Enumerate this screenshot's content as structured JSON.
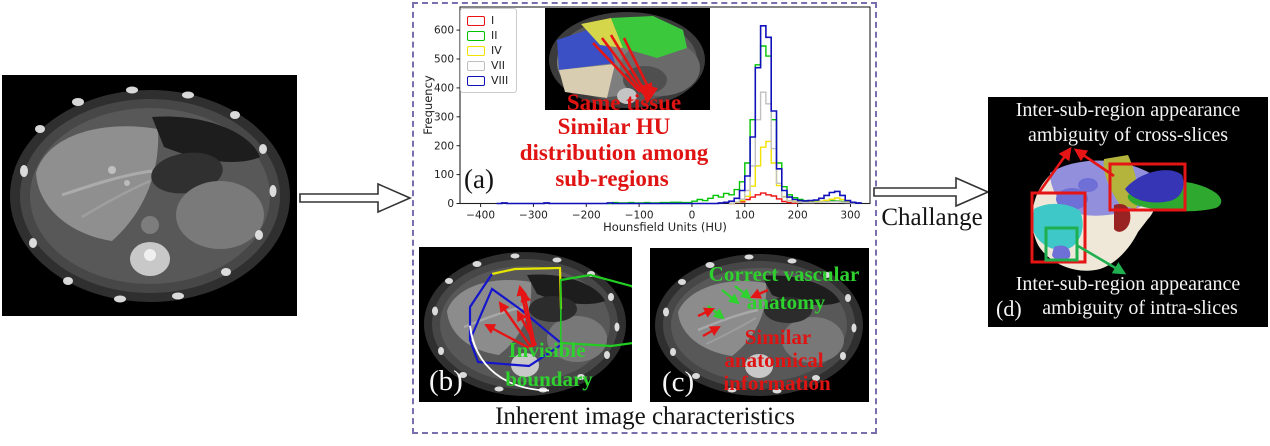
{
  "figure": {
    "challenge_label": "Challange",
    "box_caption": "Inherent image characteristics",
    "dashed_border_color": "#7a6fae",
    "arrow_red": "#e51515",
    "arrow_green": "#1faf4f"
  },
  "panel_a": {
    "label": "(a)",
    "inset_caption": "Same tissue",
    "note_lines": [
      "Similar HU",
      "distribution among",
      "sub-regions"
    ],
    "inset_overlay_colors": {
      "blue": "#3a50c4",
      "yellow": "#d6d64a",
      "green": "#3cc83c",
      "tan": "#d8cdb0"
    }
  },
  "panel_b": {
    "label": "(b)",
    "note_lines": [
      "Invisible",
      "boundary"
    ],
    "outline_colors": {
      "blue": "#1515cc",
      "yellow": "#e6e600",
      "green": "#22cc22",
      "white": "#ffffff"
    }
  },
  "panel_c": {
    "label": "(c)",
    "green_note_lines": [
      "Correct vascular",
      "anatomy"
    ],
    "red_note_lines": [
      "Similar",
      "anatomical",
      "information"
    ]
  },
  "panel_d": {
    "label": "(d)",
    "top_note_lines": [
      "Inter-sub-region appearance",
      "ambiguity of cross-slices"
    ],
    "bottom_note_lines": [
      "Inter-sub-region appearance",
      "ambiguity of intra-slices"
    ],
    "segmentation_colors": {
      "periwinkle": "#9290dd",
      "purple": "#6f6fd8",
      "cyan": "#3fc8c8",
      "dark_blue": "#3535b5",
      "green": "#2ea82e",
      "olive": "#b4b43c",
      "dark_red": "#992222",
      "cream": "#efe8d8"
    }
  },
  "chart_data": {
    "type": "line",
    "subtype": "step-histogram",
    "title": "",
    "xlabel": "Hounsfield Units (HU)",
    "ylabel": "Frequency",
    "xlim": [
      -439,
      337
    ],
    "ylim": [
      0,
      680
    ],
    "xticks": [
      -400,
      -300,
      -200,
      -100,
      0,
      100,
      200,
      300
    ],
    "yticks": [
      0,
      100,
      200,
      300,
      400,
      500,
      600
    ],
    "grid": false,
    "legend_position": "upper left",
    "series": [
      {
        "name": "I",
        "color": "#ee1111",
        "points": [
          [
            70,
            0
          ],
          [
            80,
            3
          ],
          [
            90,
            6
          ],
          [
            100,
            14
          ],
          [
            110,
            22
          ],
          [
            120,
            30
          ],
          [
            130,
            36
          ],
          [
            140,
            30
          ],
          [
            150,
            26
          ],
          [
            160,
            16
          ],
          [
            170,
            7
          ],
          [
            180,
            3
          ],
          [
            190,
            1
          ],
          [
            200,
            0
          ]
        ]
      },
      {
        "name": "II",
        "color": "#00c400",
        "points": [
          [
            -160,
            0
          ],
          [
            -150,
            3
          ],
          [
            -140,
            2
          ],
          [
            -120,
            3
          ],
          [
            -110,
            2
          ],
          [
            -90,
            3
          ],
          [
            -80,
            2
          ],
          [
            -60,
            3
          ],
          [
            -40,
            4
          ],
          [
            -20,
            3
          ],
          [
            0,
            8
          ],
          [
            10,
            14
          ],
          [
            20,
            10
          ],
          [
            30,
            18
          ],
          [
            40,
            28
          ],
          [
            50,
            22
          ],
          [
            60,
            35
          ],
          [
            70,
            30
          ],
          [
            80,
            48
          ],
          [
            90,
            75
          ],
          [
            100,
            140
          ],
          [
            110,
            290
          ],
          [
            120,
            480
          ],
          [
            130,
            545
          ],
          [
            140,
            510
          ],
          [
            150,
            290
          ],
          [
            160,
            140
          ],
          [
            170,
            58
          ],
          [
            180,
            30
          ],
          [
            190,
            20
          ],
          [
            200,
            14
          ],
          [
            210,
            10
          ],
          [
            220,
            8
          ],
          [
            230,
            8
          ],
          [
            240,
            8
          ],
          [
            250,
            9
          ],
          [
            260,
            10
          ],
          [
            270,
            9
          ],
          [
            280,
            7
          ],
          [
            290,
            4
          ],
          [
            300,
            2
          ],
          [
            310,
            0
          ]
        ]
      },
      {
        "name": "IV",
        "color": "#f2e200",
        "points": [
          [
            70,
            0
          ],
          [
            80,
            4
          ],
          [
            90,
            10
          ],
          [
            100,
            25
          ],
          [
            110,
            60
          ],
          [
            120,
            130
          ],
          [
            130,
            195
          ],
          [
            140,
            215
          ],
          [
            150,
            140
          ],
          [
            160,
            62
          ],
          [
            170,
            24
          ],
          [
            180,
            10
          ],
          [
            190,
            7
          ],
          [
            200,
            6
          ],
          [
            210,
            5
          ],
          [
            220,
            5
          ],
          [
            230,
            6
          ],
          [
            240,
            8
          ],
          [
            250,
            11
          ],
          [
            260,
            15
          ],
          [
            270,
            19
          ],
          [
            280,
            14
          ],
          [
            290,
            7
          ],
          [
            300,
            3
          ],
          [
            310,
            0
          ]
        ]
      },
      {
        "name": "VII",
        "color": "#c0c0c0",
        "points": [
          [
            70,
            0
          ],
          [
            80,
            5
          ],
          [
            90,
            15
          ],
          [
            100,
            45
          ],
          [
            110,
            130
          ],
          [
            120,
            290
          ],
          [
            130,
            385
          ],
          [
            140,
            345
          ],
          [
            150,
            190
          ],
          [
            160,
            70
          ],
          [
            170,
            22
          ],
          [
            180,
            9
          ],
          [
            190,
            5
          ],
          [
            200,
            4
          ],
          [
            210,
            3
          ],
          [
            220,
            3
          ],
          [
            230,
            4
          ],
          [
            240,
            5
          ],
          [
            250,
            6
          ],
          [
            260,
            7
          ],
          [
            270,
            7
          ],
          [
            280,
            5
          ],
          [
            290,
            3
          ],
          [
            300,
            1
          ],
          [
            310,
            0
          ]
        ]
      },
      {
        "name": "VIII",
        "color": "#1111bb",
        "points": [
          [
            -370,
            0
          ],
          [
            -360,
            2
          ],
          [
            -350,
            0
          ],
          [
            -280,
            2
          ],
          [
            -270,
            0
          ],
          [
            -160,
            2
          ],
          [
            -150,
            0
          ],
          [
            40,
            0
          ],
          [
            50,
            2
          ],
          [
            60,
            4
          ],
          [
            70,
            8
          ],
          [
            80,
            18
          ],
          [
            90,
            45
          ],
          [
            100,
            95
          ],
          [
            110,
            230
          ],
          [
            120,
            470
          ],
          [
            130,
            615
          ],
          [
            140,
            575
          ],
          [
            150,
            320
          ],
          [
            160,
            120
          ],
          [
            170,
            45
          ],
          [
            180,
            22
          ],
          [
            190,
            14
          ],
          [
            200,
            10
          ],
          [
            210,
            9
          ],
          [
            220,
            10
          ],
          [
            230,
            12
          ],
          [
            240,
            18
          ],
          [
            250,
            28
          ],
          [
            260,
            38
          ],
          [
            270,
            42
          ],
          [
            280,
            28
          ],
          [
            290,
            10
          ],
          [
            300,
            4
          ],
          [
            310,
            2
          ],
          [
            320,
            0
          ]
        ]
      }
    ]
  }
}
